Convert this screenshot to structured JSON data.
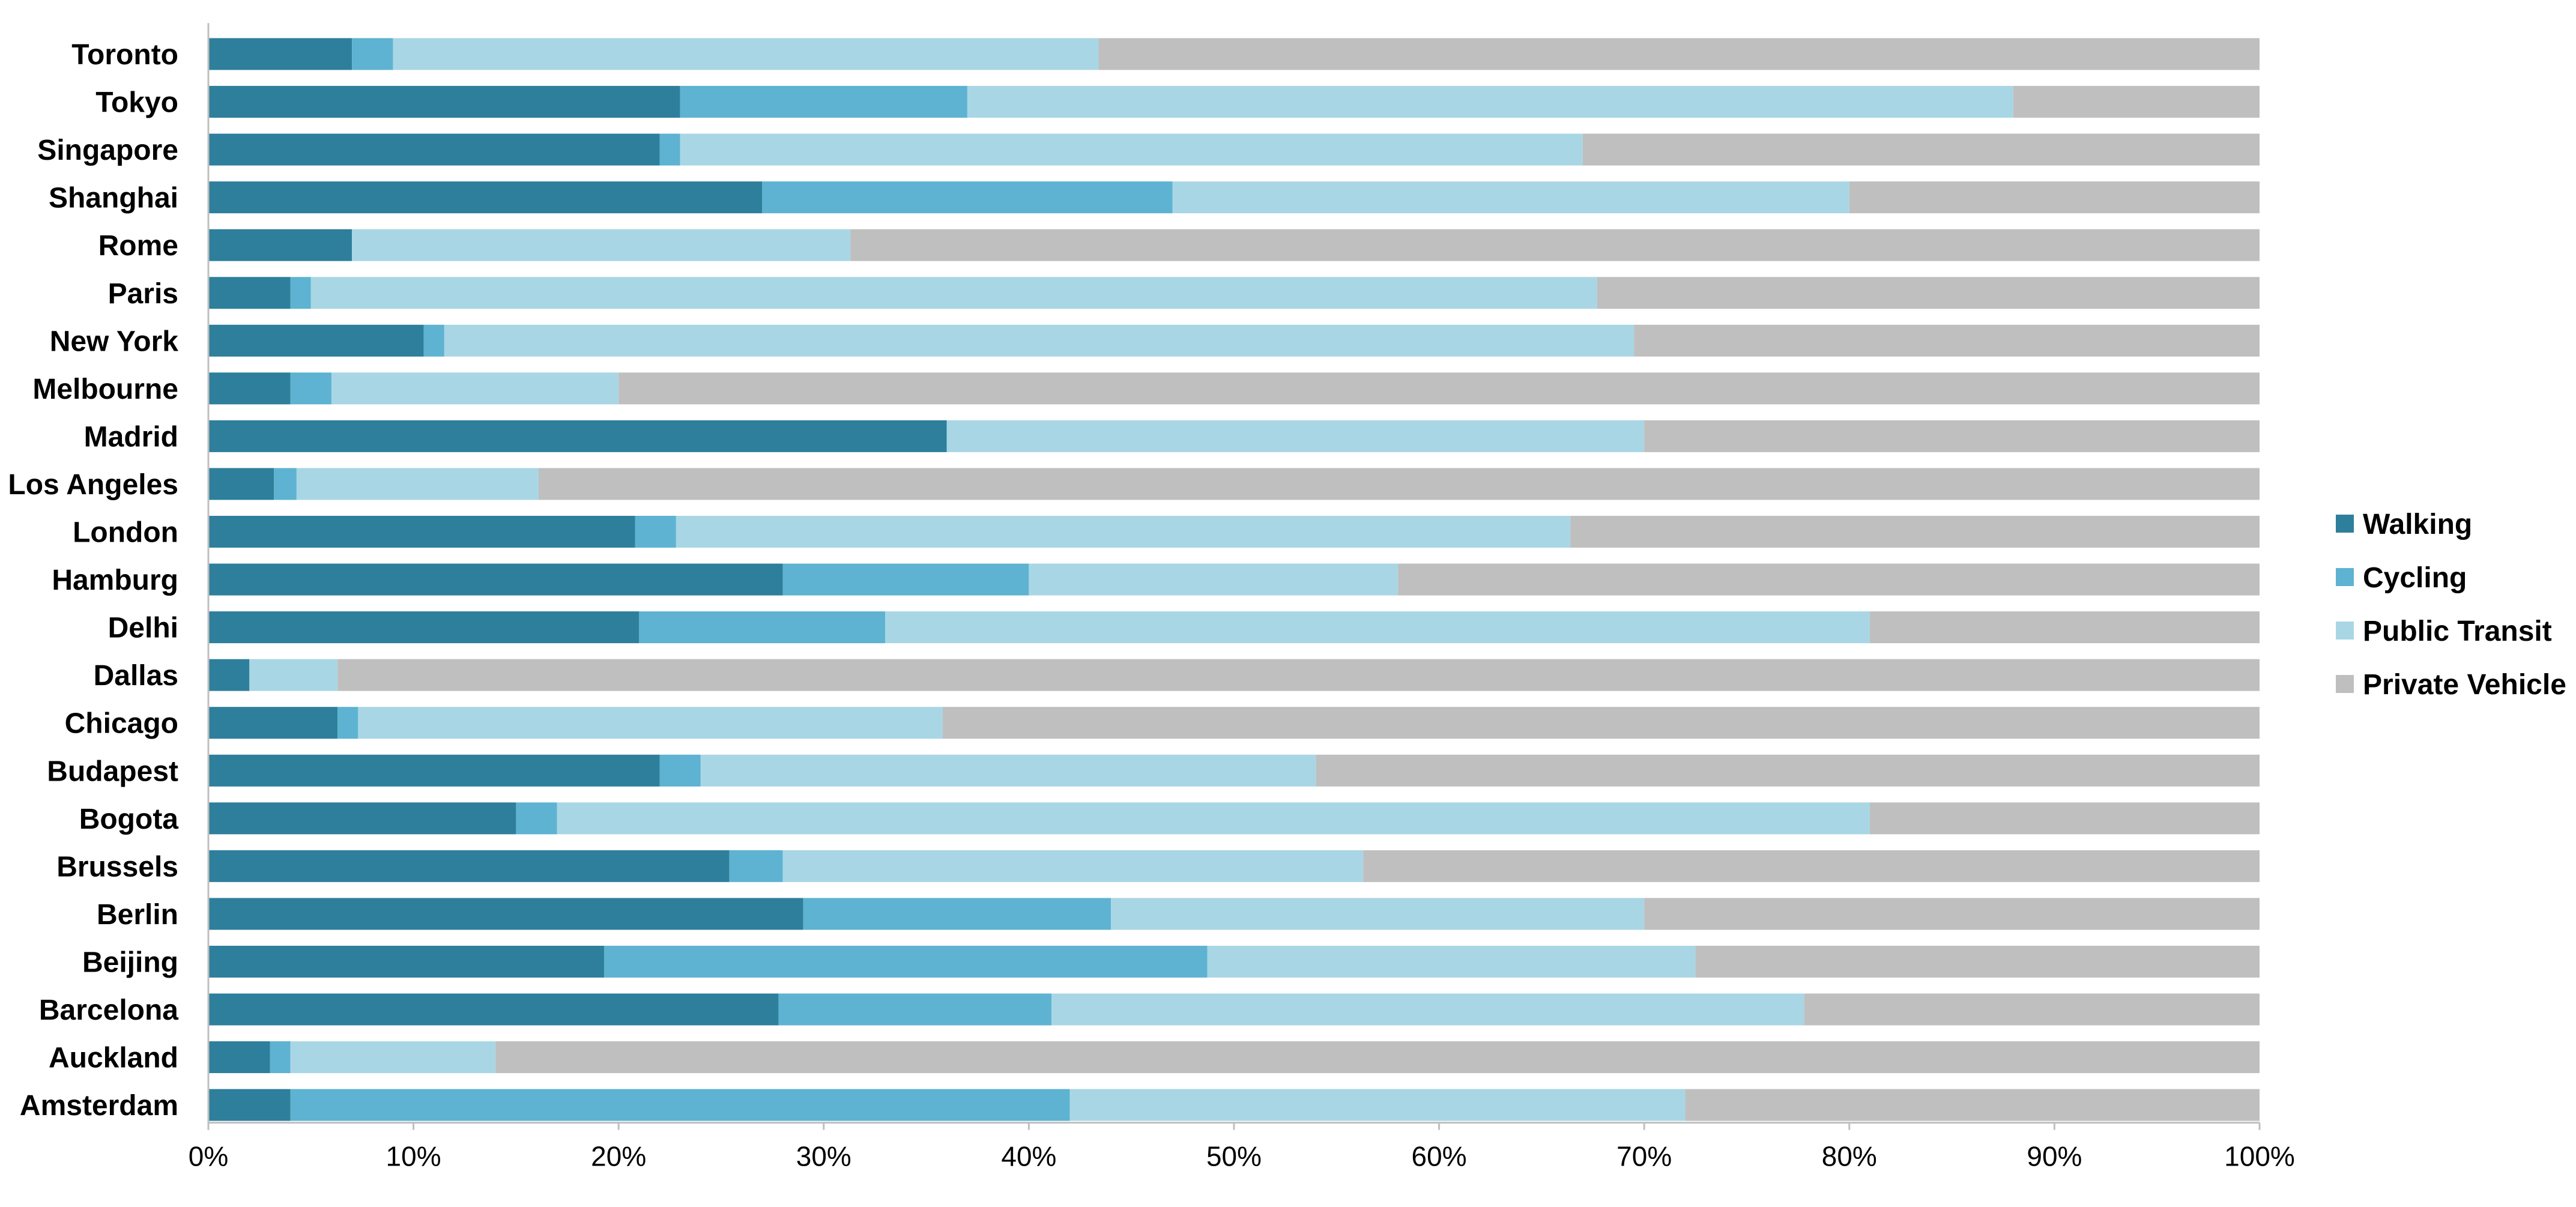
{
  "chart_data": {
    "type": "bar",
    "orientation": "horizontal",
    "stacked": "percent",
    "categories": [
      "Toronto",
      "Tokyo",
      "Singapore",
      "Shanghai",
      "Rome",
      "Paris",
      "New York",
      "Melbourne",
      "Madrid",
      "Los Angeles",
      "London",
      "Hamburg",
      "Delhi",
      "Dallas",
      "Chicago",
      "Budapest",
      "Bogota",
      "Brussels",
      "Berlin",
      "Beijing",
      "Barcelona",
      "Auckland",
      "Amsterdam"
    ],
    "series": [
      {
        "name": "Walking",
        "color": "#2e7f9b",
        "values": [
          7,
          23,
          22,
          27,
          7,
          4,
          10.5,
          4,
          36,
          3.2,
          20.8,
          28,
          21,
          2,
          6.3,
          22,
          15,
          25.4,
          29,
          19.3,
          27.8,
          3,
          4
        ]
      },
      {
        "name": "Cycling",
        "color": "#5db3d1",
        "values": [
          2,
          14,
          1,
          20,
          0,
          1,
          1,
          2,
          0,
          1.1,
          2,
          12,
          12,
          0,
          1,
          2,
          2,
          2.6,
          15,
          29.4,
          13.3,
          1,
          38
        ]
      },
      {
        "name": "Public Transit",
        "color": "#a9d6e5",
        "values": [
          34.4,
          51,
          44,
          33,
          24.3,
          62.7,
          58,
          14,
          34,
          11.8,
          43.6,
          18,
          48,
          4.3,
          28.5,
          30,
          64,
          28.3,
          26,
          23.8,
          36.7,
          10,
          30
        ]
      },
      {
        "name": "Private Vehicle",
        "color": "#bfbfbf",
        "values": [
          56.6,
          12,
          33,
          20,
          68.7,
          32.3,
          30.5,
          80,
          30,
          83.9,
          33.6,
          42,
          19,
          93.7,
          64.2,
          46,
          19,
          43.7,
          30,
          27.5,
          22.2,
          86,
          28
        ]
      }
    ],
    "xaxis": {
      "range": [
        0,
        100
      ],
      "ticks": [
        0,
        10,
        20,
        30,
        40,
        50,
        60,
        70,
        80,
        90,
        100
      ],
      "tick_labels": [
        "0%",
        "10%",
        "20%",
        "30%",
        "40%",
        "50%",
        "60%",
        "70%",
        "80%",
        "90%",
        "100%"
      ]
    },
    "grid": false,
    "legend": {
      "position": "right",
      "entries": [
        "Walking",
        "Cycling",
        "Public Transit",
        "Private Vehicle"
      ]
    }
  }
}
